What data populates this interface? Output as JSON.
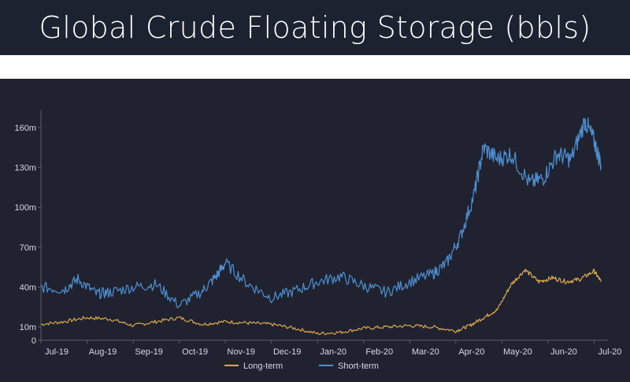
{
  "title": "Global Crude Floating Storage (bbls)",
  "chart_data": {
    "type": "line",
    "title": "Global Crude Floating Storage (bbls)",
    "xlabel": "",
    "ylabel": "",
    "ylim": [
      0,
      170
    ],
    "yticks": [
      0,
      10,
      40,
      70,
      100,
      130,
      160
    ],
    "ytick_labels": [
      "0",
      "10m",
      "40m",
      "70m",
      "100m",
      "130m",
      "160m"
    ],
    "xlim": [
      0,
      12.3
    ],
    "xticks": [
      0,
      1,
      2,
      3,
      4,
      5,
      6,
      7,
      8,
      9,
      10,
      11,
      12
    ],
    "xtick_labels": [
      "Jul-19",
      "Aug-19",
      "Sep-19",
      "Oct-19",
      "Nov-19",
      "Dec-19",
      "Jan-20",
      "Feb-20",
      "Mar-20",
      "Apr-20",
      "May-20",
      "Jun-20",
      "Jul-20"
    ],
    "grid": false,
    "legend_position": "bottom-center",
    "series": [
      {
        "name": "Long-term",
        "color": "#d9a94a",
        "x": [
          0,
          0.5,
          1,
          1.5,
          2,
          2.5,
          3,
          3.5,
          4,
          4.5,
          5,
          5.5,
          6,
          6.5,
          7,
          7.5,
          8,
          8.5,
          9,
          9.3,
          9.6,
          9.9,
          10.2,
          10.5,
          10.8,
          11.1,
          11.4,
          11.7,
          12.0,
          12.15
        ],
        "y": [
          12,
          14,
          17,
          16,
          11,
          14,
          17,
          12,
          14,
          13,
          12,
          9,
          5,
          6,
          9,
          10,
          11,
          10,
          7,
          11,
          17,
          23,
          42,
          53,
          44,
          47,
          44,
          46,
          52,
          44
        ]
      },
      {
        "name": "Short-term",
        "color": "#4e8fd1",
        "x": [
          0,
          0.5,
          0.8,
          1.2,
          1.5,
          2,
          2.5,
          3,
          3.5,
          3.8,
          4,
          4.5,
          5,
          5.5,
          6,
          6.5,
          7,
          7.5,
          8,
          8.5,
          8.8,
          9.1,
          9.4,
          9.6,
          9.9,
          10.2,
          10.6,
          10.9,
          11.2,
          11.5,
          11.8,
          12.0,
          12.15
        ],
        "y": [
          40,
          38,
          46,
          35,
          36,
          40,
          42,
          26,
          37,
          48,
          58,
          42,
          32,
          37,
          44,
          48,
          41,
          36,
          44,
          50,
          58,
          78,
          110,
          145,
          136,
          140,
          118,
          122,
          140,
          136,
          165,
          150,
          132
        ]
      }
    ]
  }
}
